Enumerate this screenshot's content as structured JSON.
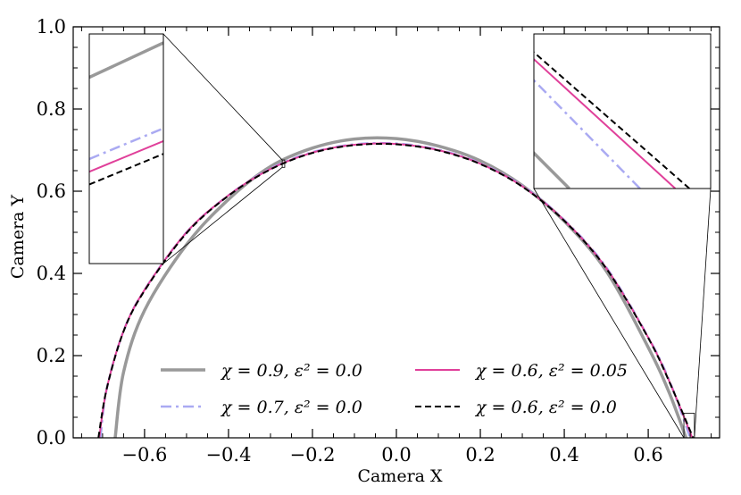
{
  "chart_data": {
    "type": "line",
    "xlabel": "Camera X",
    "ylabel": "Camera Y",
    "xlim": [
      -0.77,
      0.77
    ],
    "ylim": [
      0.0,
      1.0
    ],
    "xticks": [
      -0.6,
      -0.4,
      -0.2,
      0.0,
      0.2,
      0.4,
      0.6
    ],
    "xtick_labels": [
      "−0.6",
      "−0.4",
      "−0.2",
      "0.0",
      "0.2",
      "0.4",
      "0.6"
    ],
    "yticks": [
      0.0,
      0.2,
      0.4,
      0.6,
      0.8,
      1.0
    ],
    "ytick_labels": [
      "0.0",
      "0.2",
      "0.4",
      "0.6",
      "0.8",
      "1.0"
    ],
    "grid": false,
    "legend_position": "bottom",
    "series": [
      {
        "name": "χ = 0.9, ε² = 0.0",
        "color": "#999999",
        "style": "solid",
        "width": 3.5,
        "x": [
          -0.67,
          -0.65,
          -0.6,
          -0.5,
          -0.4,
          -0.3,
          -0.2,
          -0.1,
          0.0,
          0.1,
          0.2,
          0.3,
          0.4,
          0.5,
          0.6,
          0.65,
          0.69
        ],
        "y": [
          0.0,
          0.16,
          0.31,
          0.47,
          0.58,
          0.66,
          0.705,
          0.727,
          0.728,
          0.71,
          0.674,
          0.614,
          0.527,
          0.406,
          0.22,
          0.11,
          0.0
        ]
      },
      {
        "name": "χ = 0.7, ε² = 0.0",
        "color": "#aaaaf2",
        "style": "dashdot",
        "width": 2.5,
        "x": [
          -0.705,
          -0.69,
          -0.65,
          -0.6,
          -0.5,
          -0.4,
          -0.3,
          -0.2,
          -0.1,
          0.0,
          0.1,
          0.2,
          0.3,
          0.4,
          0.5,
          0.6,
          0.65,
          0.7
        ],
        "y": [
          0.0,
          0.12,
          0.26,
          0.36,
          0.5,
          0.59,
          0.655,
          0.695,
          0.714,
          0.716,
          0.701,
          0.668,
          0.613,
          0.53,
          0.415,
          0.245,
          0.14,
          0.0
        ]
      },
      {
        "name": "χ = 0.6, ε² = 0.05",
        "color": "#e0409a",
        "style": "solid",
        "width": 2,
        "x": [
          -0.708,
          -0.69,
          -0.65,
          -0.6,
          -0.5,
          -0.4,
          -0.3,
          -0.2,
          -0.1,
          0.0,
          0.1,
          0.2,
          0.3,
          0.4,
          0.5,
          0.6,
          0.65,
          0.705
        ],
        "y": [
          0.0,
          0.12,
          0.26,
          0.36,
          0.5,
          0.59,
          0.654,
          0.694,
          0.713,
          0.715,
          0.7,
          0.667,
          0.612,
          0.529,
          0.413,
          0.244,
          0.138,
          0.0
        ]
      },
      {
        "name": "χ = 0.6, ε² = 0.0",
        "color": "#000000",
        "style": "dashed",
        "width": 2,
        "x": [
          -0.71,
          -0.69,
          -0.65,
          -0.6,
          -0.5,
          -0.4,
          -0.3,
          -0.2,
          -0.1,
          0.0,
          0.1,
          0.2,
          0.3,
          0.4,
          0.5,
          0.6,
          0.65,
          0.707
        ],
        "y": [
          0.0,
          0.12,
          0.259,
          0.358,
          0.498,
          0.589,
          0.653,
          0.693,
          0.712,
          0.714,
          0.699,
          0.666,
          0.611,
          0.528,
          0.412,
          0.243,
          0.137,
          0.0
        ]
      }
    ],
    "insets": [
      {
        "position": "top-left",
        "xlim": [
          -0.272,
          -0.266
        ],
        "ylim": [
          0.658,
          0.676
        ]
      },
      {
        "position": "top-right",
        "xlim": [
          0.685,
          0.71
        ],
        "ylim": [
          0.0,
          0.06
        ]
      }
    ]
  }
}
